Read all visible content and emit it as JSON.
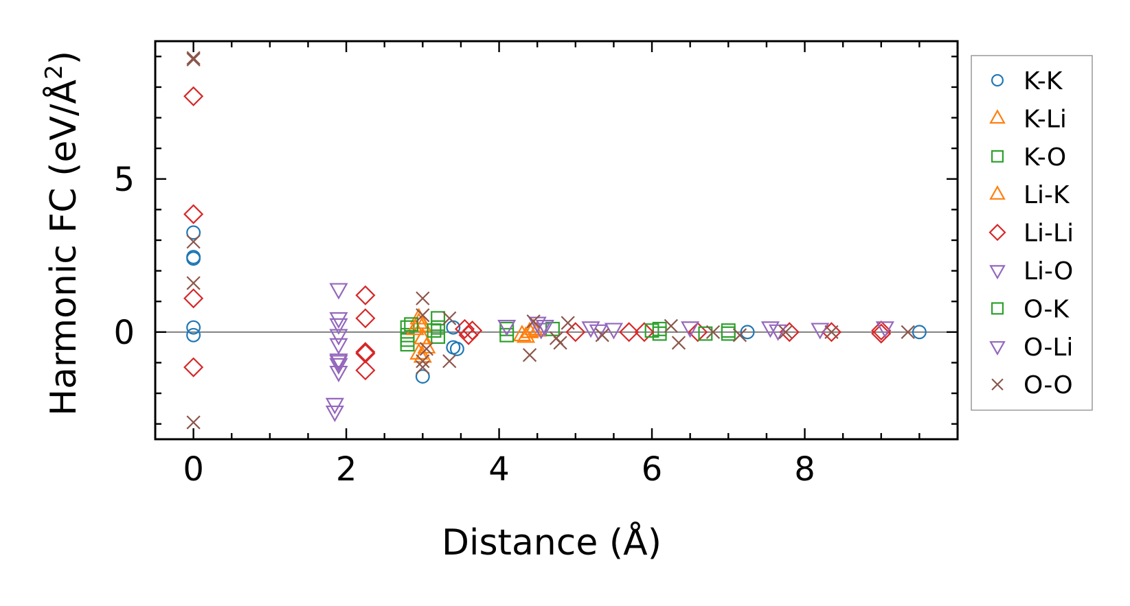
{
  "chart_data": {
    "type": "scatter",
    "xlabel": "Distance (Å)",
    "ylabel_main": "Harmonic FC (eV/Å",
    "ylabel_sup": "2",
    "ylabel_tail": ")",
    "xlim": [
      -0.5,
      10.0
    ],
    "ylim": [
      -3.5,
      9.5
    ],
    "xticks": [
      0,
      2,
      4,
      6,
      8
    ],
    "yticks": [
      0,
      5
    ],
    "x_minor_step": 0.5,
    "y_minor_step": 1.0,
    "zero_line": true,
    "grid": false,
    "legend_position": "right",
    "series": [
      {
        "name": "K-K",
        "marker": "circle",
        "color": "#1f77b4",
        "x": [
          0,
          0,
          0,
          0,
          0,
          3.0,
          3.4,
          3.4,
          3.45,
          7.25,
          9.5
        ],
        "y": [
          3.25,
          2.45,
          2.4,
          0.15,
          -0.1,
          -1.45,
          -0.5,
          0.15,
          -0.55,
          0.0,
          0.0
        ]
      },
      {
        "name": "K-Li",
        "marker": "triangle-up",
        "color": "#ff7f0e",
        "x": [
          2.95,
          3.0,
          3.0,
          3.05,
          2.95,
          3.0,
          4.3,
          4.4,
          4.45
        ],
        "y": [
          0.45,
          0.2,
          -0.2,
          -0.5,
          -0.7,
          -0.8,
          -0.1,
          0.0,
          0.1
        ]
      },
      {
        "name": "K-O",
        "marker": "square",
        "color": "#2ca02c",
        "x": [
          2.8,
          2.8,
          2.8,
          2.8,
          3.2,
          3.2,
          3.2,
          4.1,
          4.1,
          4.7,
          6.1,
          6.1,
          7.0,
          7.0
        ],
        "y": [
          0.15,
          -0.1,
          -0.25,
          -0.4,
          0.45,
          0.15,
          -0.15,
          0.1,
          -0.1,
          0.1,
          0.1,
          -0.05,
          0.05,
          -0.05
        ]
      },
      {
        "name": "Li-K",
        "marker": "triangle-up",
        "color": "#ff7f0e",
        "x": [
          2.9,
          3.0,
          2.95,
          4.35,
          4.5
        ],
        "y": [
          0.1,
          -0.2,
          0.3,
          -0.15,
          0.05
        ]
      },
      {
        "name": "Li-Li",
        "marker": "diamond",
        "color": "#d62728",
        "x": [
          0,
          0,
          0,
          0,
          2.25,
          2.25,
          2.25,
          2.25,
          2.25,
          3.55,
          3.6,
          3.65,
          5.0,
          5.7,
          5.9,
          6.6,
          7.8,
          8.35,
          9.0,
          9.0
        ],
        "y": [
          7.7,
          3.85,
          1.1,
          -1.15,
          1.2,
          0.45,
          -0.65,
          -0.7,
          -1.25,
          0.1,
          -0.1,
          0.05,
          0.0,
          0.0,
          0.0,
          0.0,
          0.0,
          0.0,
          0.05,
          -0.05
        ]
      },
      {
        "name": "Li-O",
        "marker": "triangle-down",
        "color": "#9467bd",
        "x": [
          1.9,
          1.9,
          1.9,
          1.9,
          1.9,
          1.9,
          1.9,
          1.9,
          4.1,
          4.5,
          4.55,
          5.2,
          5.5,
          6.5,
          7.55,
          7.65,
          8.2,
          9.05
        ],
        "y": [
          1.4,
          0.45,
          0.25,
          -0.1,
          -0.4,
          -0.9,
          -1.05,
          -1.3,
          0.2,
          0.3,
          0.1,
          0.15,
          0.1,
          0.15,
          0.15,
          0.05,
          0.1,
          0.15
        ]
      },
      {
        "name": "O-K",
        "marker": "square",
        "color": "#2ca02c",
        "x": [
          2.85,
          3.15,
          6.0,
          6.7
        ],
        "y": [
          0.25,
          0.05,
          0.05,
          -0.05
        ]
      },
      {
        "name": "O-Li",
        "marker": "triangle-down",
        "color": "#9467bd",
        "x": [
          1.85,
          1.85,
          1.9,
          4.6,
          5.3
        ],
        "y": [
          -2.35,
          -2.6,
          -0.95,
          0.2,
          0.05
        ]
      },
      {
        "name": "O-O",
        "marker": "x",
        "color": "#8c564b",
        "x": [
          0,
          0,
          0,
          0,
          0,
          3.0,
          3.0,
          3.05,
          3.0,
          3.0,
          3.35,
          3.35,
          4.4,
          4.45,
          4.75,
          4.8,
          4.9,
          5.35,
          6.25,
          6.35,
          6.8,
          7.15,
          7.75,
          8.35,
          9.35
        ],
        "y": [
          8.95,
          8.9,
          2.95,
          1.6,
          -2.95,
          1.1,
          0.55,
          -0.55,
          -0.95,
          -1.15,
          0.45,
          -0.95,
          -0.75,
          0.35,
          -0.2,
          -0.35,
          0.3,
          -0.1,
          0.2,
          -0.35,
          0.0,
          -0.1,
          0.0,
          0.0,
          0.0
        ]
      }
    ]
  }
}
